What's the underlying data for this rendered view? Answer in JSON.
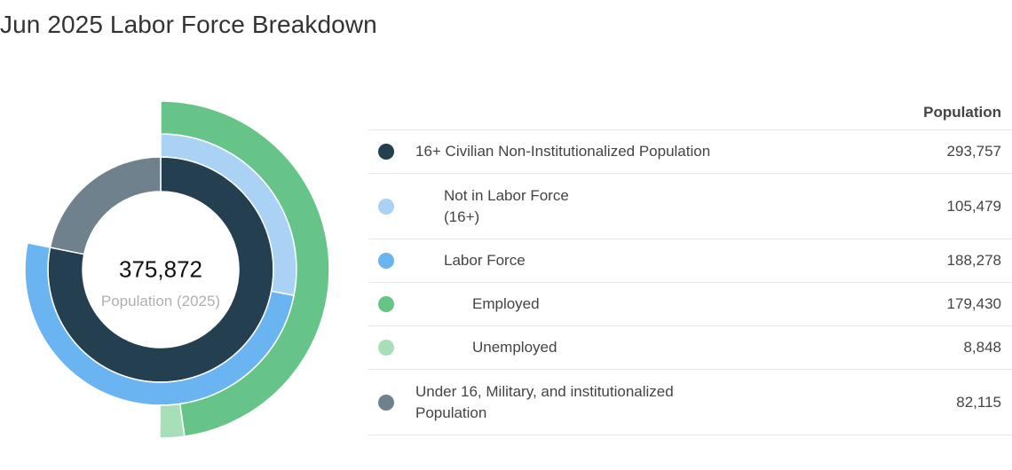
{
  "title": "Jun 2025 Labor Force Breakdown",
  "center": {
    "value": "375,872",
    "label": "Population (2025)"
  },
  "table": {
    "column_header": "Population",
    "rows": [
      {
        "label": "16+ Civilian Non-Institutionalized Population",
        "value": "293,757",
        "color": "#243f4f"
      },
      {
        "label": "Not in Labor Force\n(16+)",
        "value": "105,479",
        "color": "#a9d2f5"
      },
      {
        "label": "Labor Force",
        "value": "188,278",
        "color": "#6ab4f1"
      },
      {
        "label": "Employed",
        "value": "179,430",
        "color": "#66c488"
      },
      {
        "label": "Unemployed",
        "value": "8,848",
        "color": "#a7dfb9"
      },
      {
        "label": "Under 16, Military, and institutionalized\nPopulation",
        "value": "82,115",
        "color": "#6f818c"
      }
    ]
  },
  "chart_data": {
    "type": "pie",
    "title": "Jun 2025 Labor Force Breakdown",
    "total": 375872,
    "rings": [
      {
        "level": 1,
        "slices": [
          {
            "name": "16+ Civilian Non-Institutionalized Population",
            "value": 293757,
            "color": "#243f4f"
          },
          {
            "name": "Under 16, Military, and institutionalized Population",
            "value": 82115,
            "color": "#6f818c"
          }
        ]
      },
      {
        "level": 2,
        "slices": [
          {
            "name": "Not in Labor Force (16+)",
            "value": 105479,
            "color": "#a9d2f5"
          },
          {
            "name": "Labor Force",
            "value": 188278,
            "color": "#6ab4f1"
          }
        ]
      },
      {
        "level": 3,
        "slices": [
          {
            "name": "Employed",
            "value": 179430,
            "color": "#66c488"
          },
          {
            "name": "Unemployed",
            "value": 8848,
            "color": "#a7dfb9"
          }
        ]
      }
    ]
  }
}
